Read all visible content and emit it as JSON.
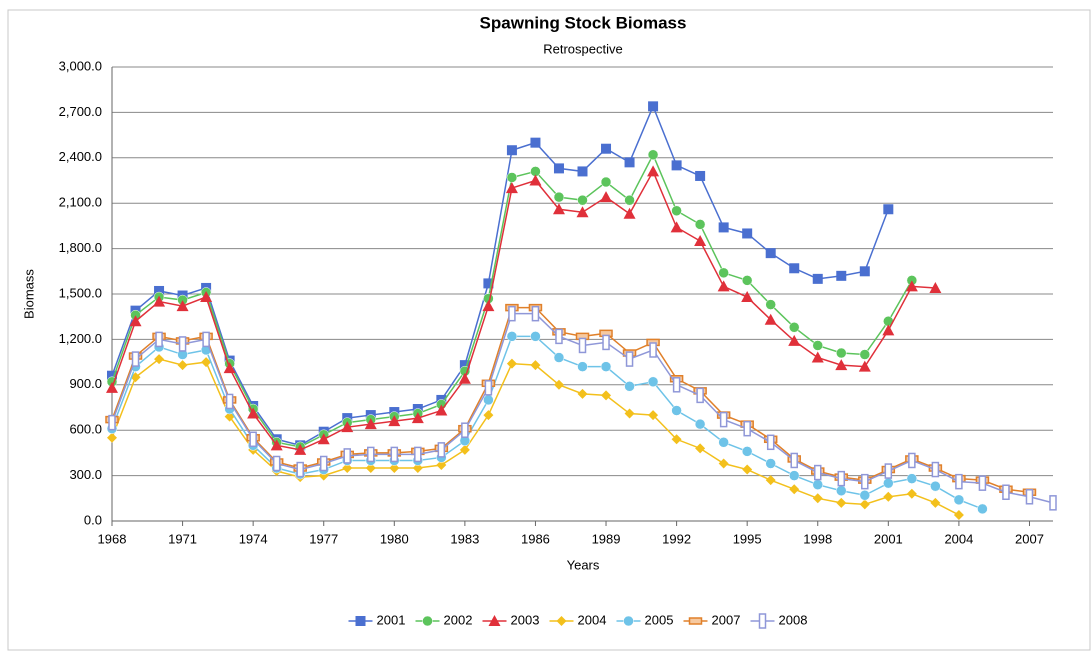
{
  "chart_data": {
    "type": "line",
    "title": "Spawning Stock Biomass",
    "subtitle": "Retrospective",
    "x_label": "Years",
    "y_label": "Biomass",
    "xlim": [
      1968,
      2008
    ],
    "xticks": [
      1968,
      1971,
      1974,
      1977,
      1980,
      1983,
      1986,
      1989,
      1992,
      1995,
      1998,
      2001,
      2004,
      2007
    ],
    "ylim": [
      0,
      3000
    ],
    "yticks": [
      {
        "value": 0,
        "label": "0.0"
      },
      {
        "value": 300,
        "label": "300.0"
      },
      {
        "value": 600,
        "label": "600.0"
      },
      {
        "value": 900,
        "label": "900.0"
      },
      {
        "value": 1200,
        "label": "1,200.0"
      },
      {
        "value": 1500,
        "label": "1,500.0"
      },
      {
        "value": 1800,
        "label": "1,800.0"
      },
      {
        "value": 2100,
        "label": "2,100.0"
      },
      {
        "value": 2400,
        "label": "2,400.0"
      },
      {
        "value": 2700,
        "label": "2,700.0"
      },
      {
        "value": 3000,
        "label": "3,000.0"
      }
    ],
    "grid": true,
    "legend": "bottom",
    "x": [
      1968,
      1969,
      1970,
      1971,
      1972,
      1973,
      1974,
      1975,
      1976,
      1977,
      1978,
      1979,
      1980,
      1981,
      1982,
      1983,
      1984,
      1985,
      1986,
      1987,
      1988,
      1989,
      1990,
      1991,
      1992,
      1993,
      1994,
      1995,
      1996,
      1997,
      1998,
      1999,
      2000,
      2001,
      2002,
      2003,
      2004,
      2005,
      2006,
      2007,
      2008
    ],
    "series": [
      {
        "name": "2001",
        "color": "#4a6fd0",
        "marker": "square",
        "values": [
          960,
          1390,
          1520,
          1490,
          1540,
          1060,
          760,
          540,
          500,
          590,
          680,
          700,
          720,
          740,
          800,
          1030,
          1570,
          2450,
          2500,
          2330,
          2310,
          2460,
          2370,
          2740,
          2350,
          2280,
          1940,
          1900,
          1770,
          1670,
          1600,
          1620,
          1650,
          2060,
          null,
          null,
          null,
          null,
          null,
          null,
          null
        ]
      },
      {
        "name": "2002",
        "color": "#5cc45c",
        "marker": "circle",
        "values": [
          920,
          1360,
          1480,
          1460,
          1510,
          1040,
          740,
          520,
          490,
          570,
          650,
          670,
          690,
          710,
          770,
          990,
          1470,
          2270,
          2310,
          2140,
          2120,
          2240,
          2120,
          2420,
          2050,
          1960,
          1640,
          1590,
          1430,
          1280,
          1160,
          1110,
          1100,
          1320,
          1590,
          null,
          null,
          null,
          null,
          null,
          null
        ]
      },
      {
        "name": "2003",
        "color": "#e0303a",
        "marker": "triangle",
        "values": [
          880,
          1320,
          1450,
          1420,
          1480,
          1010,
          710,
          500,
          470,
          540,
          620,
          640,
          660,
          680,
          730,
          940,
          1420,
          2200,
          2250,
          2060,
          2040,
          2140,
          2030,
          2310,
          1940,
          1850,
          1550,
          1480,
          1330,
          1190,
          1080,
          1030,
          1020,
          1260,
          1550,
          1540,
          null,
          null,
          null,
          null,
          null
        ]
      },
      {
        "name": "2004",
        "color": "#f3c01c",
        "marker": "diamond",
        "values": [
          550,
          950,
          1070,
          1030,
          1050,
          690,
          470,
          330,
          290,
          300,
          350,
          350,
          350,
          350,
          370,
          470,
          700,
          1040,
          1030,
          900,
          840,
          830,
          710,
          700,
          540,
          480,
          380,
          340,
          270,
          210,
          150,
          120,
          110,
          160,
          180,
          120,
          40,
          null,
          null,
          null,
          null
        ]
      },
      {
        "name": "2005",
        "color": "#6ec3e8",
        "marker": "circle",
        "values": [
          610,
          1020,
          1150,
          1100,
          1130,
          740,
          500,
          350,
          310,
          340,
          400,
          400,
          400,
          400,
          420,
          530,
          800,
          1220,
          1220,
          1080,
          1020,
          1020,
          890,
          920,
          730,
          640,
          520,
          460,
          380,
          300,
          240,
          200,
          170,
          250,
          280,
          230,
          140,
          80,
          null,
          null,
          null
        ]
      },
      {
        "name": "2007",
        "color": "#e0802a",
        "marker": "dash",
        "values": [
          670,
          1090,
          1220,
          1190,
          1220,
          800,
          550,
          390,
          350,
          390,
          440,
          450,
          450,
          460,
          480,
          610,
          910,
          1410,
          1410,
          1250,
          1220,
          1240,
          1110,
          1180,
          940,
          860,
          700,
          640,
          540,
          410,
          330,
          290,
          270,
          340,
          410,
          350,
          280,
          270,
          210,
          190,
          null
        ]
      },
      {
        "name": "2008",
        "color": "#8f97d8",
        "marker": "bar",
        "values": [
          650,
          1070,
          1200,
          1170,
          1200,
          790,
          540,
          380,
          340,
          380,
          430,
          440,
          440,
          440,
          470,
          600,
          880,
          1370,
          1370,
          1220,
          1160,
          1180,
          1070,
          1130,
          900,
          830,
          670,
          610,
          520,
          400,
          320,
          280,
          260,
          330,
          400,
          340,
          260,
          250,
          190,
          160,
          120
        ]
      }
    ]
  }
}
